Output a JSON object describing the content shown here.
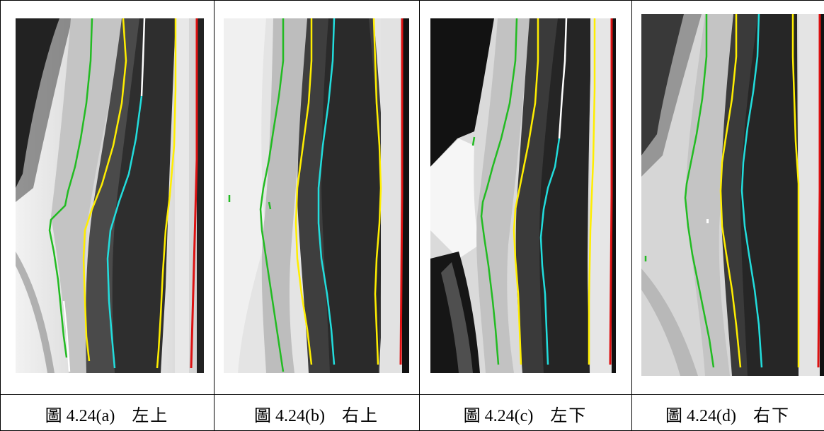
{
  "panels": [
    {
      "id": "a",
      "figure": "圖 4.24(a)",
      "position": "左上"
    },
    {
      "id": "b",
      "figure": "圖 4.24(b)",
      "position": "右上"
    },
    {
      "id": "c",
      "figure": "圖 4.24(c)",
      "position": "左下"
    },
    {
      "id": "d",
      "figure": "圖 4.24(d)",
      "position": "右下"
    }
  ],
  "colors": {
    "green_edge": "#22bb22",
    "yellow_edge": "#ffee00",
    "cyan_edge": "#22dddd",
    "white_edge": "#ffffff",
    "red_edge": "#dd1111"
  }
}
